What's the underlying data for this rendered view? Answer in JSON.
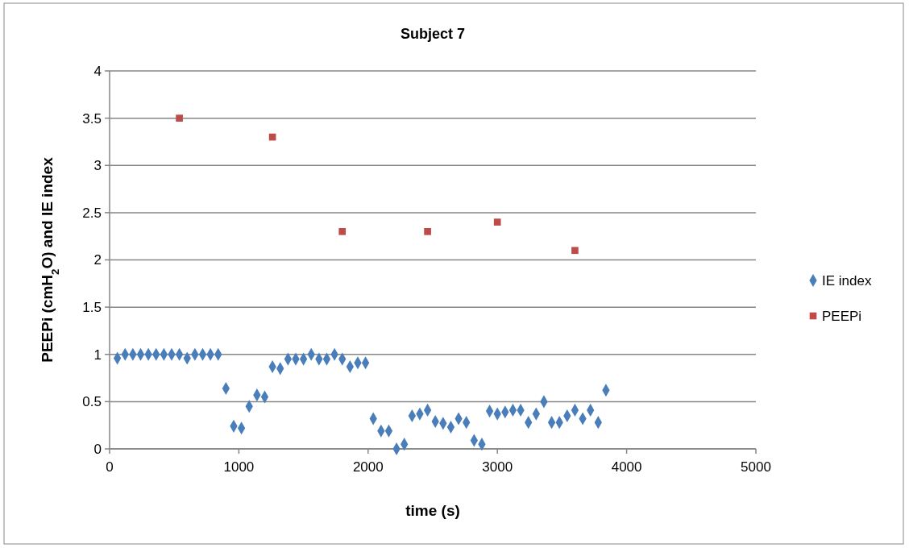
{
  "chart_data": {
    "type": "scatter",
    "title": "Subject 7",
    "xlabel": "time (s)",
    "ylabel": "PEEPi (cmH$_{2}$O) and IE index",
    "xlim": [
      0,
      5000
    ],
    "xticks": [
      0,
      1000,
      2000,
      3000,
      4000,
      5000
    ],
    "ylim": [
      0,
      4
    ],
    "yticks": [
      0,
      0.5,
      1,
      1.5,
      2,
      2.5,
      3,
      3.5,
      4
    ],
    "grid": "y",
    "legend": "right",
    "series": [
      {
        "name": "IE index",
        "color": "#4a7ebb",
        "marker": "diamond",
        "x": [
          60,
          120,
          180,
          240,
          300,
          360,
          420,
          480,
          540,
          600,
          660,
          720,
          780,
          840,
          900,
          960,
          1020,
          1080,
          1140,
          1200,
          1260,
          1320,
          1380,
          1440,
          1500,
          1560,
          1620,
          1680,
          1740,
          1800,
          1860,
          1920,
          1980,
          2040,
          2100,
          2160,
          2220,
          2280,
          2340,
          2400,
          2460,
          2520,
          2580,
          2640,
          2700,
          2760,
          2820,
          2880,
          2940,
          3000,
          3060,
          3120,
          3180,
          3240,
          3300,
          3360,
          3420,
          3480,
          3540,
          3600,
          3660,
          3720,
          3780,
          3840
        ],
        "values": [
          0.96,
          1,
          1,
          1,
          1,
          1,
          1,
          1,
          1,
          0.96,
          1,
          1,
          1,
          1,
          0.64,
          0.24,
          0.22,
          0.45,
          0.57,
          0.55,
          0.87,
          0.85,
          0.95,
          0.95,
          0.95,
          1,
          0.95,
          0.95,
          1,
          0.95,
          0.87,
          0.91,
          0.91,
          0.32,
          0.19,
          0.19,
          0,
          0.05,
          0.35,
          0.37,
          0.41,
          0.29,
          0.27,
          0.23,
          0.32,
          0.28,
          0.09,
          0.05,
          0.4,
          0.37,
          0.39,
          0.41,
          0.41,
          0.28,
          0.37,
          0.5,
          0.28,
          0.28,
          0.35,
          0.41,
          0.32,
          0.41,
          0.28,
          0.62
        ]
      },
      {
        "name": "PEEPi",
        "color": "#be4b48",
        "marker": "square",
        "x": [
          540,
          1260,
          1800,
          2460,
          3000,
          3600
        ],
        "values": [
          3.5,
          3.3,
          2.3,
          2.3,
          2.4,
          2.1
        ]
      }
    ]
  }
}
